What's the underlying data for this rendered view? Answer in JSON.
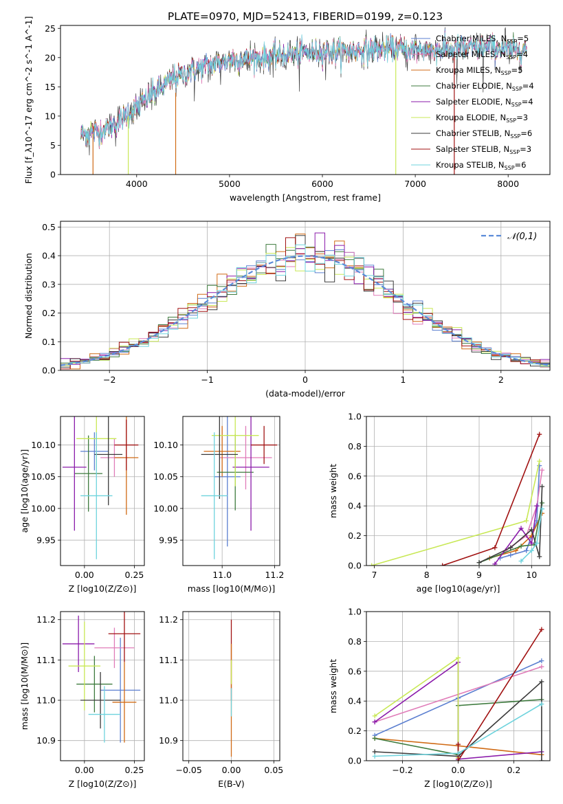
{
  "title": "PLATE=0970, MJD=52413, FIBERID=0199, z=0.123",
  "series_styles": [
    {
      "name": "Chabrier MILES",
      "nssp": "5",
      "color": "#5b7fd0"
    },
    {
      "name": "Salpeter MILES",
      "nssp": "4",
      "color": "#e07bb8"
    },
    {
      "name": "Kroupa MILES",
      "nssp": "5",
      "color": "#d06a14"
    },
    {
      "name": "Chabrier ELODIE",
      "nssp": "4",
      "color": "#3d7a3d"
    },
    {
      "name": "Salpeter ELODIE",
      "nssp": "4",
      "color": "#8a1aaa"
    },
    {
      "name": "Kroupa ELODIE",
      "nssp": "3",
      "color": "#c8e855"
    },
    {
      "name": "Chabrier STELIB",
      "nssp": "6",
      "color": "#3a3a3a"
    },
    {
      "name": "Salpeter STELIB",
      "nssp": "3",
      "color": "#a01010"
    },
    {
      "name": "Kroupa STELIB",
      "nssp": "6",
      "color": "#6ed3dd"
    }
  ],
  "chart_data": [
    {
      "id": "spectrum",
      "type": "line",
      "xlabel": "wavelength [Angstrom, rest frame]",
      "ylabel": "Flux [f_λ10^-17 erg cm^-2 s^-1 A^-1]",
      "xlim": [
        3180,
        8450
      ],
      "ylim": [
        0,
        25.5
      ],
      "xticks": [
        4000,
        5000,
        6000,
        7000,
        8000
      ],
      "yticks": [
        0,
        5,
        10,
        15,
        20,
        25
      ],
      "grid": false,
      "legend": "top-right",
      "x_range": [
        3400,
        8200
      ],
      "continuum_x": [
        3400,
        3600,
        3800,
        4000,
        4200,
        4400,
        4600,
        4800,
        5000,
        5200,
        5400,
        5600,
        5800,
        6000,
        6200,
        6400,
        6600,
        6800,
        7000,
        7200,
        7400,
        7600,
        7800,
        8000,
        8200
      ],
      "continuum_y": [
        7,
        7.3,
        9,
        11.5,
        14,
        16.5,
        17.8,
        18.8,
        19.6,
        19.8,
        20.1,
        20.5,
        20.8,
        21,
        21.1,
        21.2,
        21.5,
        21.5,
        21.2,
        21.3,
        21.4,
        21.6,
        21.8,
        21.2,
        21.5
      ]
    },
    {
      "id": "residuals",
      "type": "step",
      "xlabel": "(data-model)/error",
      "ylabel": "Normed distribution",
      "xlim": [
        -2.5,
        2.5
      ],
      "ylim": [
        0,
        0.52
      ],
      "xticks": [
        -2,
        -1,
        0,
        1,
        2
      ],
      "yticks": [
        0,
        0.1,
        0.2,
        0.3,
        0.4,
        0.5
      ],
      "grid": true,
      "legend": "top-right",
      "reference": {
        "label": "𝒩(0,1)",
        "mean": 0,
        "sigma": 1,
        "color": "#5a8ad8"
      },
      "bin_width": 0.1
    },
    {
      "id": "age_vs_Z",
      "type": "errorbar",
      "xlabel": "Z [log10(Z/Z⊙)]",
      "ylabel": "age  [log10(age/yr)]",
      "xlim": [
        -0.12,
        0.3
      ],
      "ylim": [
        9.91,
        10.145
      ],
      "xticks": [
        0.0,
        0.25
      ],
      "yticks": [
        9.95,
        10.0,
        10.05,
        10.1
      ],
      "grid": true,
      "points": [
        {
          "x": 0.05,
          "xerr": 0.07,
          "y": 10.09,
          "yerr": 0.03
        },
        {
          "x": 0.15,
          "xerr": 0.07,
          "y": 10.08,
          "yerr": 0.03
        },
        {
          "x": 0.21,
          "xerr": 0.06,
          "y": 10.08,
          "yerr": 0.09
        },
        {
          "x": 0.02,
          "xerr": 0.07,
          "y": 10.055,
          "yerr": 0.06
        },
        {
          "x": -0.05,
          "xerr": 0.06,
          "y": 10.065,
          "yerr": 0.1
        },
        {
          "x": 0.06,
          "xerr": 0.1,
          "y": 10.11,
          "yerr": 0.05
        },
        {
          "x": 0.12,
          "xerr": 0.07,
          "y": 10.085,
          "yerr": 0.08
        },
        {
          "x": 0.21,
          "xerr": 0.06,
          "y": 10.1,
          "yerr": 0.04
        },
        {
          "x": 0.06,
          "xerr": 0.08,
          "y": 10.02,
          "yerr": 0.1
        }
      ]
    },
    {
      "id": "age_vs_mass",
      "type": "errorbar",
      "xlabel": "mass [log10(M/M⊙)]",
      "ylabel": "",
      "xlim": [
        10.85,
        11.22
      ],
      "ylim": [
        9.91,
        10.145
      ],
      "xticks": [
        11.0,
        11.2
      ],
      "yticks": [
        9.95,
        10.0,
        10.05,
        10.1
      ],
      "grid": true,
      "points": [
        {
          "x": 11.02,
          "xerr": 0.05,
          "y": 10.05,
          "yerr": 0.11
        },
        {
          "x": 11.09,
          "xerr": 0.1,
          "y": 10.08,
          "yerr": 0.05
        },
        {
          "x": 11.0,
          "xerr": 0.07,
          "y": 10.09,
          "yerr": 0.04
        },
        {
          "x": 11.05,
          "xerr": 0.07,
          "y": 10.057,
          "yerr": 0.06
        },
        {
          "x": 11.11,
          "xerr": 0.07,
          "y": 10.065,
          "yerr": 0.1
        },
        {
          "x": 11.05,
          "xerr": 0.09,
          "y": 10.115,
          "yerr": 0.08
        },
        {
          "x": 10.99,
          "xerr": 0.07,
          "y": 10.085,
          "yerr": 0.07
        },
        {
          "x": 11.16,
          "xerr": 0.05,
          "y": 10.1,
          "yerr": 0.03
        },
        {
          "x": 10.97,
          "xerr": 0.05,
          "y": 10.02,
          "yerr": 0.1
        }
      ]
    },
    {
      "id": "weight_vs_age",
      "type": "line",
      "xlabel": "age  [log10(age/yr)]",
      "ylabel": "mass weight",
      "xlim": [
        6.85,
        10.35
      ],
      "ylim": [
        0,
        1
      ],
      "xticks": [
        7,
        8,
        9,
        10
      ],
      "yticks": [
        0,
        0.2,
        0.4,
        0.6,
        0.8,
        1.0
      ],
      "grid": true,
      "lines": [
        {
          "x": [
            9.4,
            9.6,
            9.9,
            10.1,
            10.15
          ],
          "y": [
            0.05,
            0.07,
            0.1,
            0.3,
            0.67
          ]
        },
        {
          "x": [
            9.5,
            9.9,
            10.1,
            10.2
          ],
          "y": [
            0.1,
            0.2,
            0.4,
            0.64
          ]
        },
        {
          "x": [
            9.2,
            9.7,
            10.0,
            10.2
          ],
          "y": [
            0.05,
            0.1,
            0.2,
            0.35
          ]
        },
        {
          "x": [
            9.0,
            9.8,
            10.05,
            10.2
          ],
          "y": [
            0.02,
            0.13,
            0.14,
            0.42
          ]
        },
        {
          "x": [
            9.3,
            9.8,
            10.0,
            10.1
          ],
          "y": [
            0.01,
            0.25,
            0.15,
            0.4
          ]
        },
        {
          "x": [
            6.95,
            9.9,
            10.15
          ],
          "y": [
            0.0,
            0.3,
            0.7
          ]
        },
        {
          "x": [
            9.0,
            9.6,
            10.0,
            10.15,
            10.2
          ],
          "y": [
            0.02,
            0.12,
            0.24,
            0.06,
            0.53
          ]
        },
        {
          "x": [
            8.3,
            9.3,
            10.15
          ],
          "y": [
            0.0,
            0.12,
            0.88
          ]
        },
        {
          "x": [
            9.8,
            10.0,
            10.1,
            10.2
          ],
          "y": [
            0.03,
            0.1,
            0.15,
            0.38
          ]
        }
      ]
    },
    {
      "id": "mass_vs_Z",
      "type": "errorbar",
      "xlabel": "Z [log10(Z/Z⊙)]",
      "ylabel": "mass [log10(M/M⊙)]",
      "xlim": [
        -0.12,
        0.3
      ],
      "ylim": [
        10.85,
        11.22
      ],
      "xticks": [
        0.0,
        0.25
      ],
      "yticks": [
        10.9,
        11.0,
        11.1,
        11.2
      ],
      "grid": true,
      "points": [
        {
          "x": 0.18,
          "xerr": 0.1,
          "y": 11.025,
          "yerr": 0.13
        },
        {
          "x": 0.15,
          "xerr": 0.1,
          "y": 11.13,
          "yerr": 0.05
        },
        {
          "x": 0.2,
          "xerr": 0.06,
          "y": 10.995,
          "yerr": 0.1
        },
        {
          "x": 0.05,
          "xerr": 0.09,
          "y": 11.04,
          "yerr": 0.07
        },
        {
          "x": -0.03,
          "xerr": 0.08,
          "y": 11.14,
          "yerr": 0.07
        },
        {
          "x": 0.0,
          "xerr": 0.08,
          "y": 11.085,
          "yerr": 0.11
        },
        {
          "x": 0.08,
          "xerr": 0.1,
          "y": 11.0,
          "yerr": 0.07
        },
        {
          "x": 0.2,
          "xerr": 0.08,
          "y": 11.165,
          "yerr": 0.07
        },
        {
          "x": 0.1,
          "xerr": 0.08,
          "y": 10.965,
          "yerr": 0.07
        }
      ]
    },
    {
      "id": "mass_vs_ebv",
      "type": "errorbar",
      "xlabel": "E(B-V)",
      "ylabel": "",
      "xlim": [
        -0.057,
        0.057
      ],
      "ylim": [
        10.85,
        11.22
      ],
      "xticks": [
        -0.05,
        0.0,
        0.05
      ],
      "yticks": [
        10.9,
        11.0,
        11.1,
        11.2
      ],
      "grid": true,
      "points": [
        {
          "x": 0,
          "xerr": 0,
          "y": 11.1,
          "yerr": 0.1
        },
        {
          "x": 0,
          "xerr": 0,
          "y": 11.0,
          "yerr": 0.14
        }
      ]
    },
    {
      "id": "weight_vs_Z",
      "type": "line",
      "xlabel": "Z [log10(Z/Z⊙)]",
      "ylabel": "mass weight",
      "xlim": [
        -0.33,
        0.33
      ],
      "ylim": [
        0,
        1
      ],
      "xticks": [
        -0.2,
        0.0,
        0.2
      ],
      "yticks": [
        0,
        0.2,
        0.4,
        0.6,
        0.8,
        1.0
      ],
      "grid": true,
      "lines": [
        {
          "x": [
            -0.3,
            0.0,
            0.3
          ],
          "y": [
            0.17,
            0.42,
            0.67
          ]
        },
        {
          "x": [
            -0.3,
            0.3
          ],
          "y": [
            0.26,
            0.63
          ]
        },
        {
          "x": [
            -0.3,
            0.0,
            0.3
          ],
          "y": [
            0.15,
            0.1,
            0.04
          ]
        },
        {
          "x": [
            -0.3,
            0.0,
            0.0,
            0.3
          ],
          "y": [
            0.15,
            0.04,
            0.37,
            0.41
          ]
        },
        {
          "x": [
            -0.3,
            0.0,
            0.0,
            0.3
          ],
          "y": [
            0.26,
            0.66,
            0.01,
            0.06
          ]
        },
        {
          "x": [
            -0.3,
            0.0,
            0.0
          ],
          "y": [
            0.3,
            0.69,
            0.02
          ]
        },
        {
          "x": [
            -0.3,
            0.0,
            0.3,
            0.3
          ],
          "y": [
            0.06,
            0.03,
            0.53,
            0.0
          ]
        },
        {
          "x": [
            0.0,
            0.0,
            0.3
          ],
          "y": [
            0.11,
            0.0,
            0.88
          ]
        },
        {
          "x": [
            -0.3,
            0.0,
            0.3
          ],
          "y": [
            0.03,
            0.05,
            0.38
          ]
        }
      ]
    }
  ]
}
